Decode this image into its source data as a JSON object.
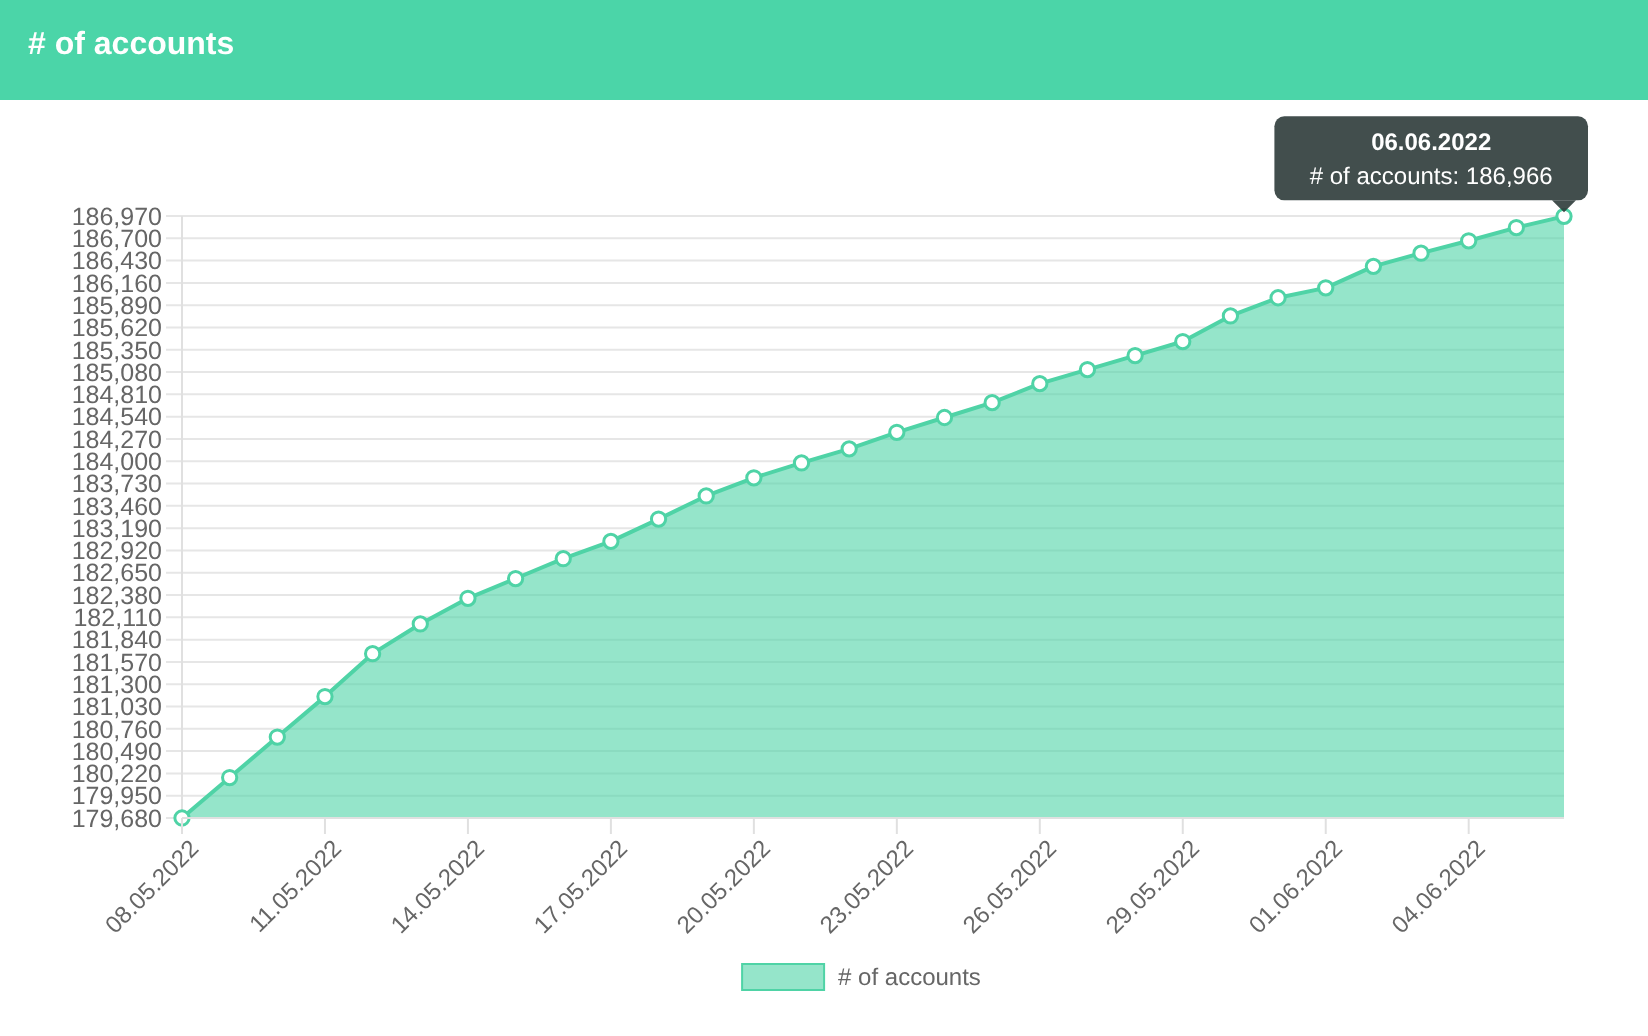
{
  "chart_data": {
    "type": "area",
    "title": "# of accounts",
    "x": [
      "2022-05-08",
      "2022-05-09",
      "2022-05-10",
      "2022-05-11",
      "2022-05-12",
      "2022-05-13",
      "2022-05-14",
      "2022-05-15",
      "2022-05-16",
      "2022-05-17",
      "2022-05-18",
      "2022-05-19",
      "2022-05-20",
      "2022-05-21",
      "2022-05-22",
      "2022-05-23",
      "2022-05-24",
      "2022-05-25",
      "2022-05-26",
      "2022-05-27",
      "2022-05-28",
      "2022-05-29",
      "2022-05-30",
      "2022-05-31",
      "2022-06-01",
      "2022-06-02",
      "2022-06-03",
      "2022-06-04",
      "2022-06-05",
      "2022-06-06"
    ],
    "series": [
      {
        "name": "# of accounts",
        "color": "#4fd3a6",
        "values": [
          179680,
          180170,
          180660,
          181150,
          181670,
          182030,
          182340,
          182580,
          182820,
          183030,
          183300,
          183580,
          183800,
          183980,
          184150,
          184350,
          184530,
          184710,
          184940,
          185110,
          185280,
          185450,
          185760,
          185980,
          186100,
          186360,
          186520,
          186670,
          186830,
          186966
        ]
      }
    ],
    "xlim": [
      "2022-05-08",
      "2022-06-06"
    ],
    "xticks": [
      {
        "value": "2022-05-08",
        "label": "08.05.2022"
      },
      {
        "value": "2022-05-11",
        "label": "11.05.2022"
      },
      {
        "value": "2022-05-14",
        "label": "14.05.2022"
      },
      {
        "value": "2022-05-17",
        "label": "17.05.2022"
      },
      {
        "value": "2022-05-20",
        "label": "20.05.2022"
      },
      {
        "value": "2022-05-23",
        "label": "23.05.2022"
      },
      {
        "value": "2022-05-26",
        "label": "26.05.2022"
      },
      {
        "value": "2022-05-29",
        "label": "29.05.2022"
      },
      {
        "value": "2022-06-01",
        "label": "01.06.2022"
      },
      {
        "value": "2022-06-04",
        "label": "04.06.2022"
      }
    ],
    "ylim": [
      179680,
      186970
    ],
    "yticks": [
      {
        "value": 179680,
        "label": "179,680"
      },
      {
        "value": 179950,
        "label": "179,950"
      },
      {
        "value": 180220,
        "label": "180,220"
      },
      {
        "value": 180490,
        "label": "180,490"
      },
      {
        "value": 180760,
        "label": "180,760"
      },
      {
        "value": 181030,
        "label": "181,030"
      },
      {
        "value": 181300,
        "label": "181,300"
      },
      {
        "value": 181570,
        "label": "181,570"
      },
      {
        "value": 181840,
        "label": "181,840"
      },
      {
        "value": 182110,
        "label": "182,110"
      },
      {
        "value": 182380,
        "label": "182,380"
      },
      {
        "value": 182650,
        "label": "182,650"
      },
      {
        "value": 182920,
        "label": "182,920"
      },
      {
        "value": 183190,
        "label": "183,190"
      },
      {
        "value": 183460,
        "label": "183,460"
      },
      {
        "value": 183730,
        "label": "183,730"
      },
      {
        "value": 184000,
        "label": "184,000"
      },
      {
        "value": 184270,
        "label": "184,270"
      },
      {
        "value": 184540,
        "label": "184,540"
      },
      {
        "value": 184810,
        "label": "184,810"
      },
      {
        "value": 185080,
        "label": "185,080"
      },
      {
        "value": 185350,
        "label": "185,350"
      },
      {
        "value": 185620,
        "label": "185,620"
      },
      {
        "value": 185890,
        "label": "185,890"
      },
      {
        "value": 186160,
        "label": "186,160"
      },
      {
        "value": 186430,
        "label": "186,430"
      },
      {
        "value": 186700,
        "label": "186,700"
      },
      {
        "value": 186970,
        "label": "186,970"
      }
    ],
    "grid": "y",
    "legend": "bottom",
    "marker": "circle",
    "annotations": [
      {
        "text": "06.06.2022\n# of accounts: 186,966",
        "x": "2022-06-06",
        "y": 186966
      }
    ]
  }
}
